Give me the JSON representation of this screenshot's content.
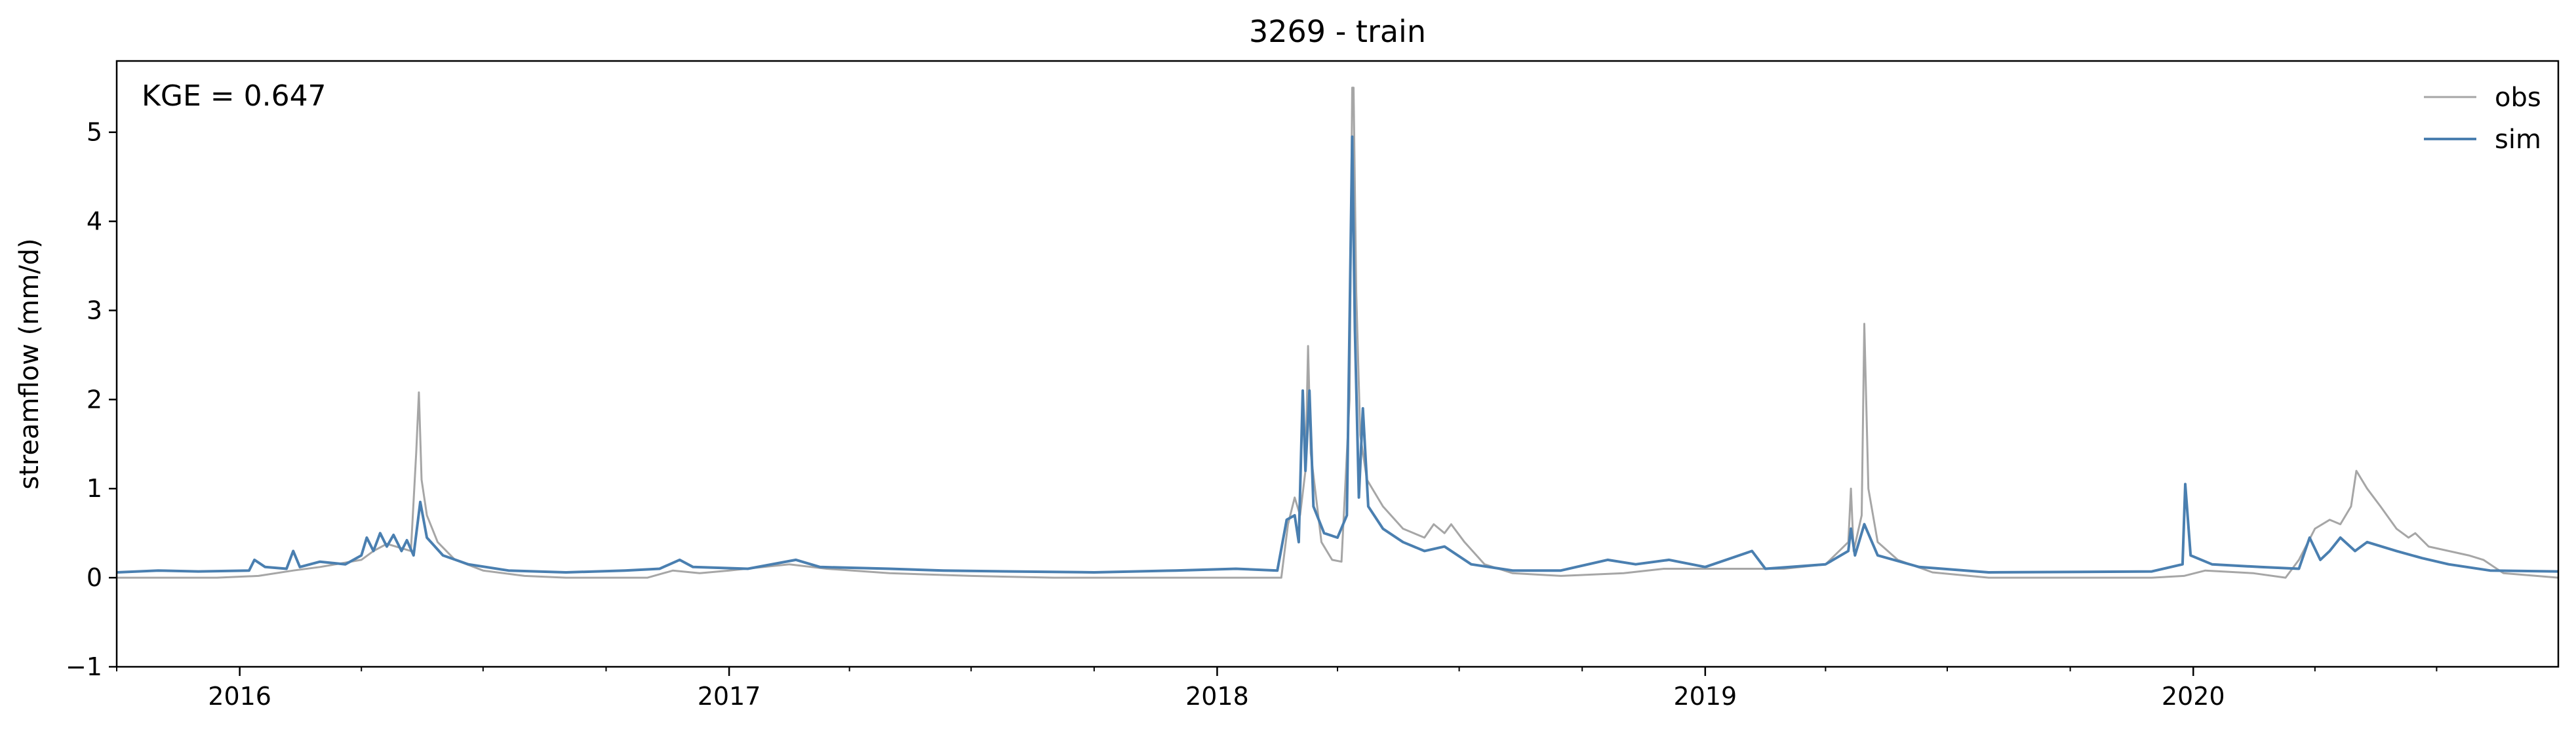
{
  "chart_data": {
    "type": "line",
    "title": "3269 - train",
    "xlabel": "",
    "ylabel": "streamflow (mm/d)",
    "annotation": "KGE = 0.647",
    "legend": {
      "placement": "top-right",
      "entries": [
        {
          "name": "obs",
          "color": "#a6a6a6"
        },
        {
          "name": "sim",
          "color": "#4a7fb0"
        }
      ]
    },
    "xlim": [
      "2015-10-01",
      "2020-09-30"
    ],
    "ylim": [
      -1,
      5.8
    ],
    "yticks": [
      -1,
      0,
      1,
      2,
      3,
      4,
      5
    ],
    "xticks": [
      {
        "value": "2016-01-01",
        "label": "2016"
      },
      {
        "value": "2017-01-01",
        "label": "2017"
      },
      {
        "value": "2018-01-01",
        "label": "2018"
      },
      {
        "value": "2019-01-01",
        "label": "2019"
      },
      {
        "value": "2020-01-01",
        "label": "2020"
      }
    ],
    "grid": false,
    "series": [
      {
        "name": "obs",
        "color": "#a6a6a6",
        "points": [
          [
            "2015-10-01",
            0.0
          ],
          [
            "2015-12-15",
            0.0
          ],
          [
            "2016-01-15",
            0.02
          ],
          [
            "2016-02-10",
            0.08
          ],
          [
            "2016-03-01",
            0.12
          ],
          [
            "2016-04-01",
            0.2
          ],
          [
            "2016-04-10",
            0.3
          ],
          [
            "2016-04-20",
            0.38
          ],
          [
            "2016-05-08",
            0.3
          ],
          [
            "2016-05-12",
            1.4
          ],
          [
            "2016-05-14",
            2.08
          ],
          [
            "2016-05-16",
            1.1
          ],
          [
            "2016-05-20",
            0.7
          ],
          [
            "2016-05-28",
            0.4
          ],
          [
            "2016-06-10",
            0.2
          ],
          [
            "2016-07-01",
            0.08
          ],
          [
            "2016-08-01",
            0.02
          ],
          [
            "2016-09-01",
            0.0
          ],
          [
            "2016-11-01",
            0.0
          ],
          [
            "2016-11-20",
            0.08
          ],
          [
            "2016-12-10",
            0.05
          ],
          [
            "2017-01-01",
            0.08
          ],
          [
            "2017-02-15",
            0.15
          ],
          [
            "2017-03-15",
            0.1
          ],
          [
            "2017-05-01",
            0.05
          ],
          [
            "2017-07-01",
            0.02
          ],
          [
            "2017-09-01",
            0.0
          ],
          [
            "2017-12-01",
            0.0
          ],
          [
            "2018-02-18",
            0.0
          ],
          [
            "2018-02-23",
            0.6
          ],
          [
            "2018-02-28",
            0.9
          ],
          [
            "2018-03-04",
            0.7
          ],
          [
            "2018-03-08",
            1.2
          ],
          [
            "2018-03-10",
            2.6
          ],
          [
            "2018-03-12",
            1.4
          ],
          [
            "2018-03-20",
            0.4
          ],
          [
            "2018-03-28",
            0.2
          ],
          [
            "2018-04-04",
            0.18
          ],
          [
            "2018-04-10",
            2.0
          ],
          [
            "2018-04-12",
            5.5
          ],
          [
            "2018-04-13",
            5.5
          ],
          [
            "2018-04-15",
            3.2
          ],
          [
            "2018-04-18",
            1.6
          ],
          [
            "2018-04-23",
            1.1
          ],
          [
            "2018-05-05",
            0.8
          ],
          [
            "2018-05-20",
            0.55
          ],
          [
            "2018-06-05",
            0.45
          ],
          [
            "2018-06-12",
            0.6
          ],
          [
            "2018-06-20",
            0.5
          ],
          [
            "2018-06-25",
            0.6
          ],
          [
            "2018-07-05",
            0.4
          ],
          [
            "2018-07-20",
            0.15
          ],
          [
            "2018-08-10",
            0.05
          ],
          [
            "2018-09-15",
            0.02
          ],
          [
            "2018-11-01",
            0.05
          ],
          [
            "2018-12-01",
            0.1
          ],
          [
            "2019-01-15",
            0.1
          ],
          [
            "2019-03-01",
            0.1
          ],
          [
            "2019-04-01",
            0.15
          ],
          [
            "2019-04-18",
            0.4
          ],
          [
            "2019-04-20",
            1.0
          ],
          [
            "2019-04-22",
            0.3
          ],
          [
            "2019-04-28",
            0.7
          ],
          [
            "2019-04-30",
            2.85
          ],
          [
            "2019-05-03",
            1.0
          ],
          [
            "2019-05-10",
            0.4
          ],
          [
            "2019-05-25",
            0.2
          ],
          [
            "2019-06-20",
            0.06
          ],
          [
            "2019-08-01",
            0.0
          ],
          [
            "2019-12-01",
            0.0
          ],
          [
            "2019-12-25",
            0.02
          ],
          [
            "2020-01-10",
            0.08
          ],
          [
            "2020-02-15",
            0.05
          ],
          [
            "2020-03-10",
            0.0
          ],
          [
            "2020-03-20",
            0.2
          ],
          [
            "2020-04-01",
            0.55
          ],
          [
            "2020-04-12",
            0.65
          ],
          [
            "2020-04-20",
            0.6
          ],
          [
            "2020-04-28",
            0.8
          ],
          [
            "2020-05-02",
            1.2
          ],
          [
            "2020-05-10",
            1.0
          ],
          [
            "2020-05-20",
            0.8
          ],
          [
            "2020-06-01",
            0.55
          ],
          [
            "2020-06-10",
            0.45
          ],
          [
            "2020-06-15",
            0.5
          ],
          [
            "2020-06-25",
            0.35
          ],
          [
            "2020-07-10",
            0.3
          ],
          [
            "2020-07-25",
            0.25
          ],
          [
            "2020-08-05",
            0.2
          ],
          [
            "2020-08-20",
            0.05
          ],
          [
            "2020-09-30",
            0.0
          ]
        ]
      },
      {
        "name": "sim",
        "color": "#4a7fb0",
        "points": [
          [
            "2015-10-01",
            0.06
          ],
          [
            "2015-11-01",
            0.08
          ],
          [
            "2015-12-01",
            0.07
          ],
          [
            "2016-01-08",
            0.08
          ],
          [
            "2016-01-12",
            0.2
          ],
          [
            "2016-01-20",
            0.12
          ],
          [
            "2016-02-05",
            0.1
          ],
          [
            "2016-02-10",
            0.3
          ],
          [
            "2016-02-15",
            0.12
          ],
          [
            "2016-03-01",
            0.18
          ],
          [
            "2016-03-20",
            0.15
          ],
          [
            "2016-04-01",
            0.25
          ],
          [
            "2016-04-05",
            0.45
          ],
          [
            "2016-04-10",
            0.3
          ],
          [
            "2016-04-15",
            0.5
          ],
          [
            "2016-04-20",
            0.35
          ],
          [
            "2016-04-25",
            0.48
          ],
          [
            "2016-05-01",
            0.3
          ],
          [
            "2016-05-05",
            0.42
          ],
          [
            "2016-05-10",
            0.25
          ],
          [
            "2016-05-15",
            0.85
          ],
          [
            "2016-05-20",
            0.45
          ],
          [
            "2016-06-01",
            0.25
          ],
          [
            "2016-06-20",
            0.15
          ],
          [
            "2016-07-20",
            0.08
          ],
          [
            "2016-09-01",
            0.06
          ],
          [
            "2016-10-15",
            0.08
          ],
          [
            "2016-11-10",
            0.1
          ],
          [
            "2016-11-25",
            0.2
          ],
          [
            "2016-12-05",
            0.12
          ],
          [
            "2017-01-15",
            0.1
          ],
          [
            "2017-02-20",
            0.2
          ],
          [
            "2017-03-10",
            0.12
          ],
          [
            "2017-05-01",
            0.1
          ],
          [
            "2017-06-10",
            0.08
          ],
          [
            "2017-08-01",
            0.07
          ],
          [
            "2017-10-01",
            0.06
          ],
          [
            "2017-12-01",
            0.08
          ],
          [
            "2018-01-15",
            0.1
          ],
          [
            "2018-02-15",
            0.08
          ],
          [
            "2018-02-22",
            0.65
          ],
          [
            "2018-02-28",
            0.7
          ],
          [
            "2018-03-03",
            0.4
          ],
          [
            "2018-03-06",
            2.1
          ],
          [
            "2018-03-08",
            1.2
          ],
          [
            "2018-03-11",
            2.1
          ],
          [
            "2018-03-14",
            0.8
          ],
          [
            "2018-03-22",
            0.5
          ],
          [
            "2018-04-01",
            0.45
          ],
          [
            "2018-04-08",
            0.7
          ],
          [
            "2018-04-12",
            4.95
          ],
          [
            "2018-04-14",
            2.8
          ],
          [
            "2018-04-17",
            0.9
          ],
          [
            "2018-04-20",
            1.9
          ],
          [
            "2018-04-24",
            0.8
          ],
          [
            "2018-05-05",
            0.55
          ],
          [
            "2018-05-20",
            0.4
          ],
          [
            "2018-06-05",
            0.3
          ],
          [
            "2018-06-20",
            0.35
          ],
          [
            "2018-07-10",
            0.15
          ],
          [
            "2018-08-10",
            0.08
          ],
          [
            "2018-09-15",
            0.08
          ],
          [
            "2018-10-20",
            0.2
          ],
          [
            "2018-11-10",
            0.15
          ],
          [
            "2018-12-05",
            0.2
          ],
          [
            "2019-01-01",
            0.12
          ],
          [
            "2019-02-05",
            0.3
          ],
          [
            "2019-02-15",
            0.1
          ],
          [
            "2019-04-01",
            0.15
          ],
          [
            "2019-04-18",
            0.3
          ],
          [
            "2019-04-20",
            0.55
          ],
          [
            "2019-04-23",
            0.25
          ],
          [
            "2019-04-30",
            0.6
          ],
          [
            "2019-05-10",
            0.25
          ],
          [
            "2019-06-10",
            0.12
          ],
          [
            "2019-08-01",
            0.06
          ],
          [
            "2019-12-01",
            0.07
          ],
          [
            "2019-12-24",
            0.15
          ],
          [
            "2019-12-26",
            1.05
          ],
          [
            "2019-12-30",
            0.25
          ],
          [
            "2020-01-15",
            0.15
          ],
          [
            "2020-02-20",
            0.12
          ],
          [
            "2020-03-20",
            0.1
          ],
          [
            "2020-03-28",
            0.45
          ],
          [
            "2020-04-05",
            0.2
          ],
          [
            "2020-04-12",
            0.3
          ],
          [
            "2020-04-20",
            0.45
          ],
          [
            "2020-05-01",
            0.3
          ],
          [
            "2020-05-10",
            0.4
          ],
          [
            "2020-06-01",
            0.3
          ],
          [
            "2020-06-20",
            0.22
          ],
          [
            "2020-07-10",
            0.15
          ],
          [
            "2020-08-10",
            0.08
          ],
          [
            "2020-09-30",
            0.07
          ]
        ]
      }
    ]
  }
}
